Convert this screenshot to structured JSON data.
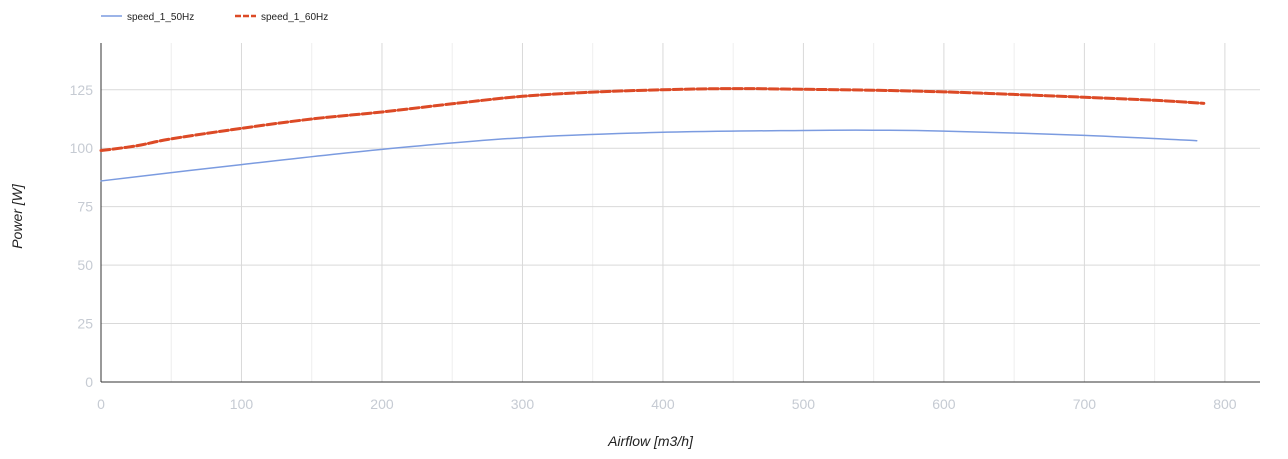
{
  "chart_data": {
    "type": "line",
    "title": "",
    "xlabel": "Airflow [m3/h]",
    "ylabel": "Power [W]",
    "xlim": [
      0,
      825
    ],
    "ylim": [
      0,
      145
    ],
    "x_ticks": [
      "0",
      "100",
      "200",
      "300",
      "400",
      "500",
      "600",
      "700",
      "800"
    ],
    "y_ticks": [
      "0",
      "25",
      "50",
      "75",
      "100",
      "125"
    ],
    "x_tick_values": [
      0,
      100,
      200,
      300,
      400,
      500,
      600,
      700,
      800
    ],
    "y_tick_values": [
      0,
      25,
      50,
      75,
      100,
      125
    ],
    "grid": true,
    "legend_position": "top-left",
    "series": [
      {
        "name": "speed_1_50Hz",
        "color": "#7b9be0",
        "dash": "solid",
        "points": [
          [
            0,
            86
          ],
          [
            100,
            93
          ],
          [
            200,
            99.5
          ],
          [
            300,
            104.5
          ],
          [
            400,
            106.8
          ],
          [
            500,
            107.6
          ],
          [
            550,
            107.7
          ],
          [
            600,
            107.3
          ],
          [
            700,
            105.5
          ],
          [
            780,
            103.2
          ]
        ]
      },
      {
        "name": "speed_1_60Hz",
        "color": "#dc4a26",
        "dash": "dashed",
        "points": [
          [
            0,
            99
          ],
          [
            25,
            101
          ],
          [
            50,
            104
          ],
          [
            100,
            108.5
          ],
          [
            150,
            112.5
          ],
          [
            200,
            115.5
          ],
          [
            250,
            119
          ],
          [
            300,
            122.2
          ],
          [
            350,
            124
          ],
          [
            400,
            125
          ],
          [
            450,
            125.5
          ],
          [
            500,
            125.2
          ],
          [
            550,
            124.8
          ],
          [
            600,
            124.1
          ],
          [
            650,
            123
          ],
          [
            700,
            121.8
          ],
          [
            750,
            120.5
          ],
          [
            785,
            119.2
          ]
        ]
      }
    ]
  }
}
